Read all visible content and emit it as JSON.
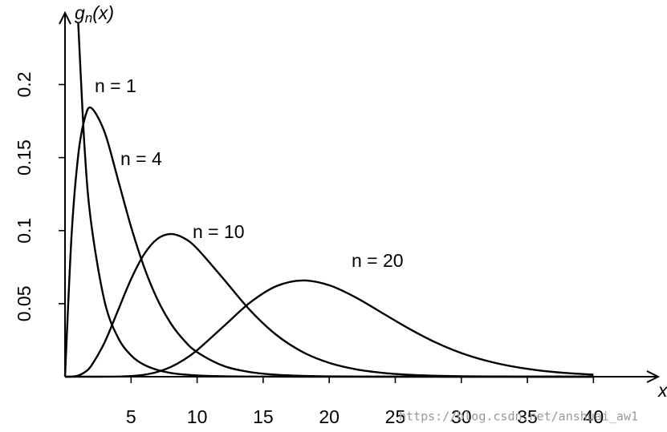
{
  "chart_data": {
    "type": "line",
    "xlabel": "x",
    "ylabel": {
      "base": "g",
      "subscript": "n",
      "argument": "(x)"
    },
    "annotations": [
      "n = 1",
      "n = 4",
      "n = 10",
      "n = 20"
    ],
    "watermark": "https://blog.csdn.net/anshuai_aw1",
    "x": [
      0,
      0.5,
      1,
      1.5,
      2,
      3,
      4,
      5,
      6,
      7,
      8,
      9,
      10,
      12,
      14,
      16,
      18,
      20,
      22,
      24,
      26,
      28,
      30,
      32,
      34,
      36,
      38,
      40
    ],
    "series": [
      {
        "name": "n = 1",
        "color": "#000000",
        "values": [
          null,
          null,
          0.242,
          0.1539,
          0.1038,
          0.0514,
          0.027,
          0.0146,
          0.0081,
          0.0046,
          0.0026,
          0.0015,
          0.00085,
          0.00029,
          0.0001,
          3e-05,
          0,
          0,
          0,
          0,
          0,
          0,
          0,
          0,
          0,
          0,
          0,
          0
        ]
      },
      {
        "name": "n = 4",
        "color": "#000000",
        "values": [
          0,
          0.0974,
          0.1516,
          0.1771,
          0.1839,
          0.1673,
          0.1353,
          0.1026,
          0.0747,
          0.0528,
          0.0366,
          0.025,
          0.0168,
          0.0074,
          0.0032,
          0.0013,
          0.00055,
          0.00023,
          0.0001,
          4e-05,
          2e-05,
          1e-05,
          0,
          0,
          0,
          0,
          0,
          0
        ]
      },
      {
        "name": "n = 10",
        "color": "#000000",
        "values": [
          0,
          6e-05,
          0.00079,
          0.00311,
          0.00766,
          0.02353,
          0.0451,
          0.0668,
          0.084,
          0.0944,
          0.0977,
          0.0949,
          0.0877,
          0.0669,
          0.0456,
          0.0286,
          0.01687,
          0.00946,
          0.00509,
          0.00265,
          0.00134,
          0.00067,
          0.00032,
          0.00015,
          7e-05,
          3e-05,
          1e-05,
          1e-05
        ]
      },
      {
        "name": "n = 20",
        "color": "#000000",
        "values": [
          0,
          0,
          0,
          0,
          0,
          1e-05,
          0.0001,
          0.00043,
          0.00135,
          0.00328,
          0.00662,
          0.01159,
          0.01813,
          0.03443,
          0.0507,
          0.062,
          0.0659,
          0.0626,
          0.0543,
          0.0437,
          0.0331,
          0.0237,
          0.0162,
          0.0107,
          0.0068,
          0.00417,
          0.00249,
          0.00145
        ]
      }
    ],
    "xlim": [
      0,
      44.9
    ],
    "ylim": [
      0,
      0.248
    ],
    "xticks": [
      5,
      10,
      15,
      20,
      25,
      30,
      35,
      40
    ],
    "yticks": [
      0.05,
      0.1,
      0.15,
      0.2
    ]
  }
}
